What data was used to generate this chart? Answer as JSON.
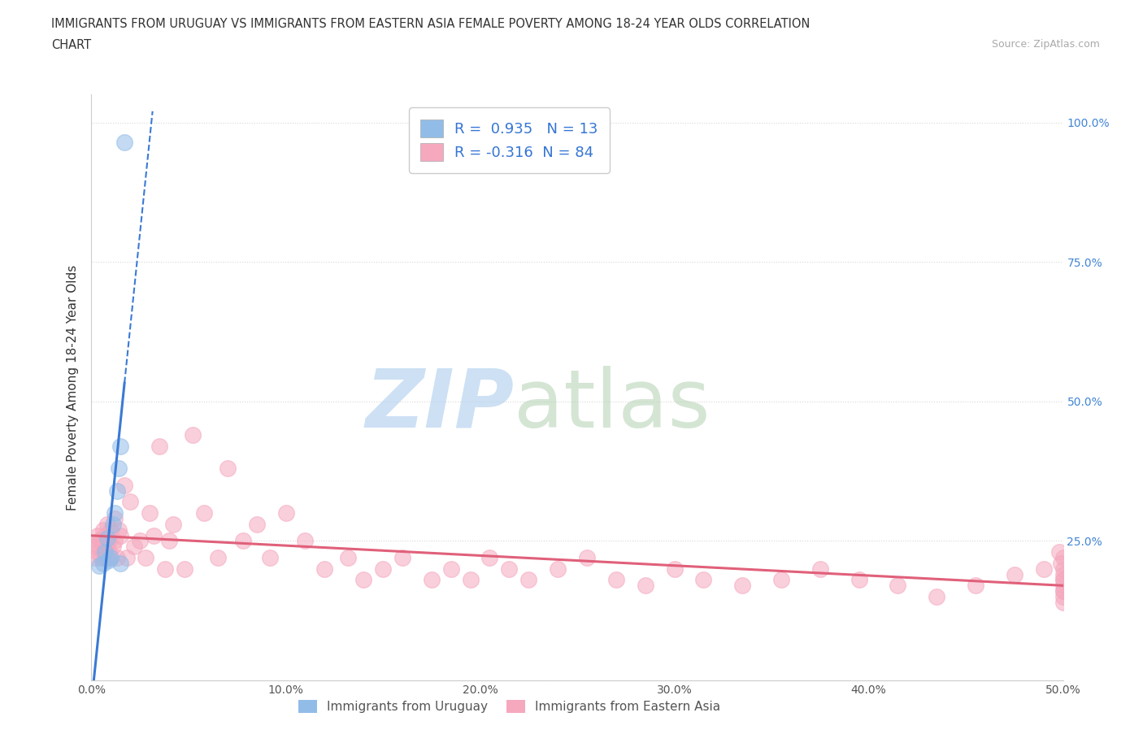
{
  "title_line1": "IMMIGRANTS FROM URUGUAY VS IMMIGRANTS FROM EASTERN ASIA FEMALE POVERTY AMONG 18-24 YEAR OLDS CORRELATION",
  "title_line2": "CHART",
  "source": "Source: ZipAtlas.com",
  "ylabel": "Female Poverty Among 18-24 Year Olds",
  "xlim": [
    0.0,
    0.5
  ],
  "ylim": [
    0.0,
    1.05
  ],
  "xticks": [
    0.0,
    0.1,
    0.2,
    0.3,
    0.4,
    0.5
  ],
  "xtick_labels": [
    "0.0%",
    "10.0%",
    "20.0%",
    "30.0%",
    "40.0%",
    "50.0%"
  ],
  "ytick_right": [
    0.25,
    0.5,
    0.75,
    1.0
  ],
  "ytick_right_labels": [
    "25.0%",
    "50.0%",
    "75.0%",
    "100.0%"
  ],
  "background_color": "#ffffff",
  "grid_color": "#d8d8d8",
  "uruguay_color": "#92bce8",
  "eastern_asia_color": "#f5a8be",
  "uruguay_line_color": "#3a7ad4",
  "eastern_asia_line_color": "#e0607a",
  "uruguay_R": 0.935,
  "uruguay_N": 13,
  "eastern_asia_R": -0.316,
  "eastern_asia_N": 84,
  "legend_label_1": "Immigrants from Uruguay",
  "legend_label_2": "Immigrants from Eastern Asia",
  "uruguay_scatter_x": [
    0.004,
    0.006,
    0.007,
    0.008,
    0.009,
    0.01,
    0.011,
    0.012,
    0.013,
    0.014,
    0.015,
    0.017,
    0.015
  ],
  "uruguay_scatter_y": [
    0.205,
    0.21,
    0.23,
    0.255,
    0.215,
    0.22,
    0.28,
    0.3,
    0.34,
    0.38,
    0.42,
    0.965,
    0.21
  ],
  "eastern_asia_scatter_x": [
    0.001,
    0.002,
    0.003,
    0.003,
    0.004,
    0.004,
    0.005,
    0.005,
    0.006,
    0.006,
    0.007,
    0.007,
    0.008,
    0.008,
    0.009,
    0.009,
    0.01,
    0.01,
    0.011,
    0.012,
    0.012,
    0.013,
    0.014,
    0.015,
    0.017,
    0.018,
    0.02,
    0.022,
    0.025,
    0.028,
    0.03,
    0.032,
    0.035,
    0.038,
    0.04,
    0.042,
    0.048,
    0.052,
    0.058,
    0.065,
    0.07,
    0.078,
    0.085,
    0.092,
    0.1,
    0.11,
    0.12,
    0.132,
    0.14,
    0.15,
    0.16,
    0.175,
    0.185,
    0.195,
    0.205,
    0.215,
    0.225,
    0.24,
    0.255,
    0.27,
    0.285,
    0.3,
    0.315,
    0.335,
    0.355,
    0.375,
    0.395,
    0.415,
    0.435,
    0.455,
    0.475,
    0.49,
    0.498,
    0.499,
    0.5,
    0.5,
    0.5,
    0.5,
    0.5,
    0.5,
    0.5,
    0.5,
    0.5,
    0.5
  ],
  "eastern_asia_scatter_y": [
    0.24,
    0.22,
    0.26,
    0.23,
    0.24,
    0.25,
    0.22,
    0.25,
    0.23,
    0.27,
    0.22,
    0.26,
    0.24,
    0.28,
    0.23,
    0.25,
    0.22,
    0.27,
    0.24,
    0.25,
    0.29,
    0.22,
    0.27,
    0.26,
    0.35,
    0.22,
    0.32,
    0.24,
    0.25,
    0.22,
    0.3,
    0.26,
    0.42,
    0.2,
    0.25,
    0.28,
    0.2,
    0.44,
    0.3,
    0.22,
    0.38,
    0.25,
    0.28,
    0.22,
    0.3,
    0.25,
    0.2,
    0.22,
    0.18,
    0.2,
    0.22,
    0.18,
    0.2,
    0.18,
    0.22,
    0.2,
    0.18,
    0.2,
    0.22,
    0.18,
    0.17,
    0.2,
    0.18,
    0.17,
    0.18,
    0.2,
    0.18,
    0.17,
    0.15,
    0.17,
    0.19,
    0.2,
    0.23,
    0.21,
    0.15,
    0.17,
    0.18,
    0.16,
    0.19,
    0.14,
    0.22,
    0.18,
    0.2,
    0.16
  ]
}
